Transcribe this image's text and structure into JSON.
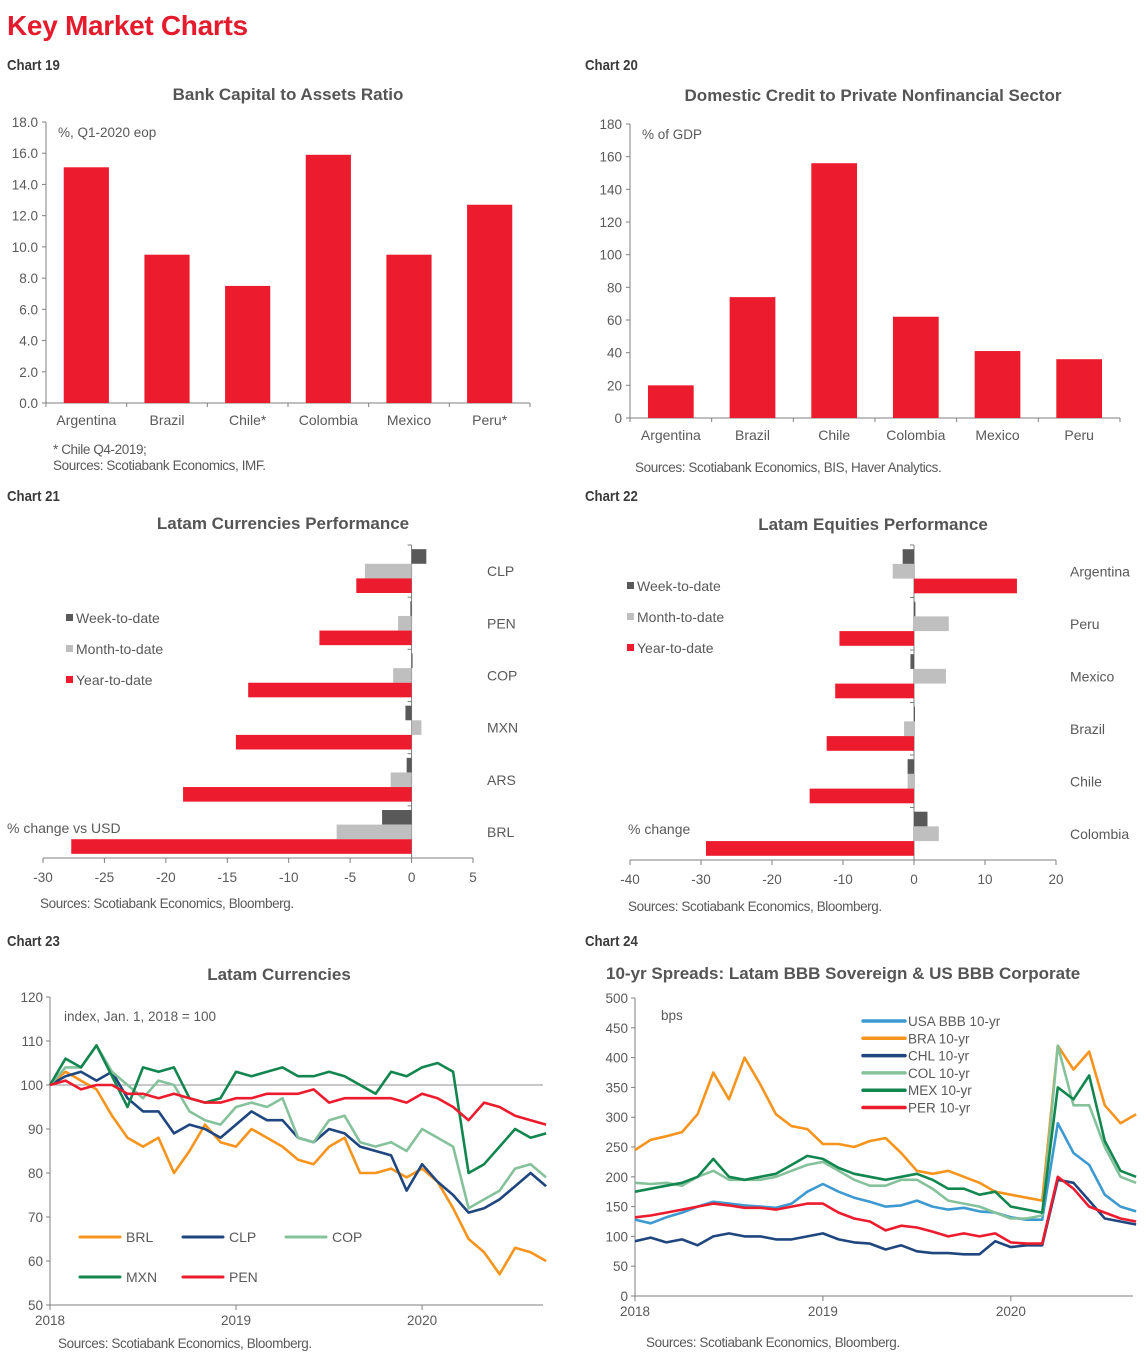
{
  "page": {
    "title": "Key Market Charts"
  },
  "colors": {
    "red": "#ec1c2e",
    "dark_gray": "#595959",
    "light_gray": "#bfbfbf",
    "BRL": "#f7941d",
    "CLP": "#1f467e",
    "COP": "#85c29c",
    "MXN": "#138650",
    "PEN": "#ec1c2e",
    "USA": "#3d9ad1"
  },
  "chart_data": [
    {
      "id": "chart19",
      "label": "Chart 19",
      "type": "bar",
      "title": "Bank Capital to Assets Ratio",
      "unit_note": "%, Q1-2020 eop",
      "categories": [
        "Argentina",
        "Brazil",
        "Chile*",
        "Colombia",
        "Mexico",
        "Peru*"
      ],
      "values": [
        15.1,
        9.5,
        7.5,
        15.9,
        9.5,
        12.7
      ],
      "ylim": [
        0,
        18
      ],
      "yticks": [
        "0.0",
        "2.0",
        "4.0",
        "6.0",
        "8.0",
        "10.0",
        "12.0",
        "14.0",
        "16.0",
        "18.0"
      ],
      "footnotes": [
        "* Chile Q4-2019;",
        "Sources: Scotiabank Economics, IMF."
      ]
    },
    {
      "id": "chart20",
      "label": "Chart 20",
      "type": "bar",
      "title": "Domestic Credit to Private Nonfinancial Sector",
      "unit_note": "% of GDP",
      "categories": [
        "Argentina",
        "Brazil",
        "Chile",
        "Colombia",
        "Mexico",
        "Peru"
      ],
      "values": [
        20,
        74,
        156,
        62,
        41,
        36
      ],
      "ylim": [
        0,
        180
      ],
      "yticks": [
        "0",
        "20",
        "40",
        "60",
        "80",
        "100",
        "120",
        "140",
        "160",
        "180"
      ],
      "footnotes": [
        "Sources: Scotiabank Economics, BIS, Haver Analytics."
      ]
    },
    {
      "id": "chart21",
      "label": "Chart 21",
      "type": "bar",
      "orientation": "horizontal",
      "title": "Latam Currencies Performance",
      "unit_note": "% change vs USD",
      "categories": [
        "CLP",
        "PEN",
        "COP",
        "MXN",
        "ARS",
        "BRL"
      ],
      "series": [
        {
          "name": "Week-to-date",
          "values": [
            1.2,
            -0.1,
            0.0,
            -0.5,
            -0.4,
            -2.4
          ]
        },
        {
          "name": "Month-to-date",
          "values": [
            -3.8,
            -1.1,
            -1.5,
            0.8,
            -1.7,
            -6.1
          ]
        },
        {
          "name": "Year-to-date",
          "values": [
            -4.5,
            -7.5,
            -13.3,
            -14.3,
            -18.6,
            -27.7
          ]
        }
      ],
      "xlim": [
        -30,
        5
      ],
      "xticks": [
        "-30",
        "-25",
        "-20",
        "-15",
        "-10",
        "-5",
        "0",
        "5"
      ],
      "legend": "left",
      "footnotes": [
        "Sources: Scotiabank Economics, Bloomberg."
      ]
    },
    {
      "id": "chart22",
      "label": "Chart 22",
      "type": "bar",
      "orientation": "horizontal",
      "title": "Latam Equities Performance",
      "unit_note": "% change",
      "categories": [
        "Argentina",
        "Peru",
        "Mexico",
        "Brazil",
        "Chile",
        "Colombia"
      ],
      "series": [
        {
          "name": "Week-to-date",
          "values": [
            -1.6,
            0.2,
            -0.5,
            0.0,
            -0.9,
            1.9
          ]
        },
        {
          "name": "Month-to-date",
          "values": [
            -3.0,
            4.9,
            4.5,
            -1.4,
            -0.9,
            3.5
          ]
        },
        {
          "name": "Year-to-date",
          "values": [
            14.5,
            -10.5,
            -11.1,
            -12.3,
            -14.7,
            -29.3
          ]
        }
      ],
      "xlim": [
        -40,
        20
      ],
      "xticks": [
        "-40",
        "-30",
        "-20",
        "-10",
        "0",
        "10",
        "20"
      ],
      "legend": "left",
      "footnotes": [
        "Sources: Scotiabank Economics, Bloomberg."
      ]
    },
    {
      "id": "chart23",
      "label": "Chart 23",
      "type": "line",
      "title": "Latam Currencies",
      "unit_note": "index, Jan. 1, 2018 = 100",
      "x_start": "2018-01",
      "x_step": "month",
      "xlim": [
        2018.0,
        2020.65
      ],
      "xticks": [
        "2018",
        "2019",
        "2020"
      ],
      "ylim": [
        50,
        120
      ],
      "yticks": [
        "50",
        "60",
        "70",
        "80",
        "90",
        "100",
        "110",
        "120"
      ],
      "reference_line": 100,
      "series": [
        {
          "name": "BRL",
          "values": [
            100,
            103,
            101,
            99,
            93,
            88,
            86,
            88,
            80,
            85,
            91,
            87,
            86,
            90,
            88,
            86,
            83,
            82,
            86,
            88,
            80,
            80,
            81,
            79,
            81,
            78,
            72,
            65,
            62,
            57,
            63,
            62,
            60
          ]
        },
        {
          "name": "CLP",
          "values": [
            100,
            102,
            103,
            101,
            103,
            97,
            94,
            94,
            89,
            91,
            90,
            88,
            91,
            94,
            92,
            92,
            88,
            87,
            90,
            89,
            86,
            85,
            84,
            76,
            82,
            78,
            75,
            71,
            72,
            74,
            77,
            80,
            77
          ]
        },
        {
          "name": "COP",
          "values": [
            100,
            104,
            104,
            109,
            103,
            100,
            97,
            101,
            100,
            94,
            92,
            91,
            95,
            96,
            95,
            97,
            88,
            87,
            92,
            93,
            87,
            86,
            87,
            85,
            90,
            88,
            86,
            72,
            74,
            76,
            81,
            82,
            79
          ]
        },
        {
          "name": "MXN",
          "values": [
            100,
            106,
            104,
            109,
            102,
            95,
            104,
            103,
            104,
            97,
            96,
            97,
            103,
            102,
            103,
            104,
            102,
            102,
            103,
            102,
            100,
            98,
            103,
            102,
            104,
            105,
            103,
            80,
            82,
            86,
            90,
            88,
            89
          ]
        },
        {
          "name": "PEN",
          "values": [
            100,
            101,
            99,
            100,
            100,
            98,
            98,
            97,
            98,
            97,
            96,
            96,
            97,
            97,
            98,
            98,
            98,
            99,
            96,
            97,
            97,
            97,
            97,
            96,
            98,
            97,
            95,
            92,
            96,
            95,
            93,
            92,
            91
          ]
        }
      ],
      "legend": "bottom-left",
      "footnotes": [
        "Sources: Scotiabank Economics, Bloomberg."
      ]
    },
    {
      "id": "chart24",
      "label": "Chart 24",
      "type": "line",
      "title": "10-yr Spreads: Latam BBB Sovereign & US BBB Corporate",
      "unit_note": "bps",
      "x_start": "2018-01",
      "x_step": "month",
      "xlim": [
        2018.0,
        2020.65
      ],
      "xticks": [
        "2018",
        "2019",
        "2020"
      ],
      "ylim": [
        0,
        500
      ],
      "yticks": [
        "0",
        "50",
        "100",
        "150",
        "200",
        "250",
        "300",
        "350",
        "400",
        "450",
        "500"
      ],
      "series": [
        {
          "name": "USA BBB 10-yr",
          "key": "USA",
          "values": [
            128,
            122,
            132,
            140,
            150,
            158,
            155,
            152,
            150,
            148,
            155,
            175,
            188,
            175,
            165,
            158,
            150,
            152,
            160,
            150,
            145,
            148,
            142,
            140,
            132,
            128,
            128,
            290,
            240,
            220,
            170,
            150,
            142
          ]
        },
        {
          "name": "BRA 10-yr",
          "key": "BRL",
          "values": [
            245,
            262,
            268,
            275,
            305,
            375,
            330,
            400,
            355,
            305,
            285,
            280,
            255,
            255,
            250,
            260,
            265,
            240,
            210,
            205,
            210,
            200,
            190,
            175,
            170,
            165,
            160,
            420,
            380,
            410,
            320,
            290,
            305
          ]
        },
        {
          "name": "CHL 10-yr",
          "key": "CLP",
          "values": [
            92,
            98,
            90,
            95,
            85,
            100,
            105,
            100,
            100,
            95,
            95,
            100,
            105,
            95,
            90,
            88,
            78,
            85,
            75,
            72,
            72,
            70,
            70,
            92,
            82,
            85,
            85,
            195,
            190,
            160,
            130,
            125,
            120
          ]
        },
        {
          "name": "COL 10-yr",
          "key": "COP",
          "values": [
            190,
            188,
            190,
            185,
            200,
            210,
            195,
            195,
            195,
            200,
            210,
            220,
            225,
            210,
            195,
            185,
            185,
            195,
            195,
            180,
            160,
            155,
            150,
            140,
            130,
            130,
            135,
            420,
            320,
            320,
            250,
            200,
            190
          ]
        },
        {
          "name": "MEX 10-yr",
          "key": "MXN",
          "values": [
            175,
            180,
            185,
            190,
            200,
            230,
            200,
            195,
            200,
            205,
            220,
            235,
            230,
            215,
            205,
            200,
            195,
            200,
            205,
            195,
            180,
            180,
            170,
            175,
            150,
            145,
            140,
            350,
            330,
            370,
            260,
            210,
            200
          ]
        },
        {
          "name": "PER 10-yr",
          "key": "PEN",
          "values": [
            132,
            135,
            140,
            145,
            150,
            155,
            152,
            148,
            148,
            145,
            150,
            155,
            155,
            140,
            130,
            125,
            110,
            118,
            115,
            108,
            100,
            105,
            100,
            105,
            90,
            88,
            88,
            200,
            180,
            150,
            140,
            130,
            125
          ]
        }
      ],
      "legend": "top-right",
      "footnotes": [
        "Sources: Scotiabank Economics, Bloomberg."
      ]
    }
  ]
}
